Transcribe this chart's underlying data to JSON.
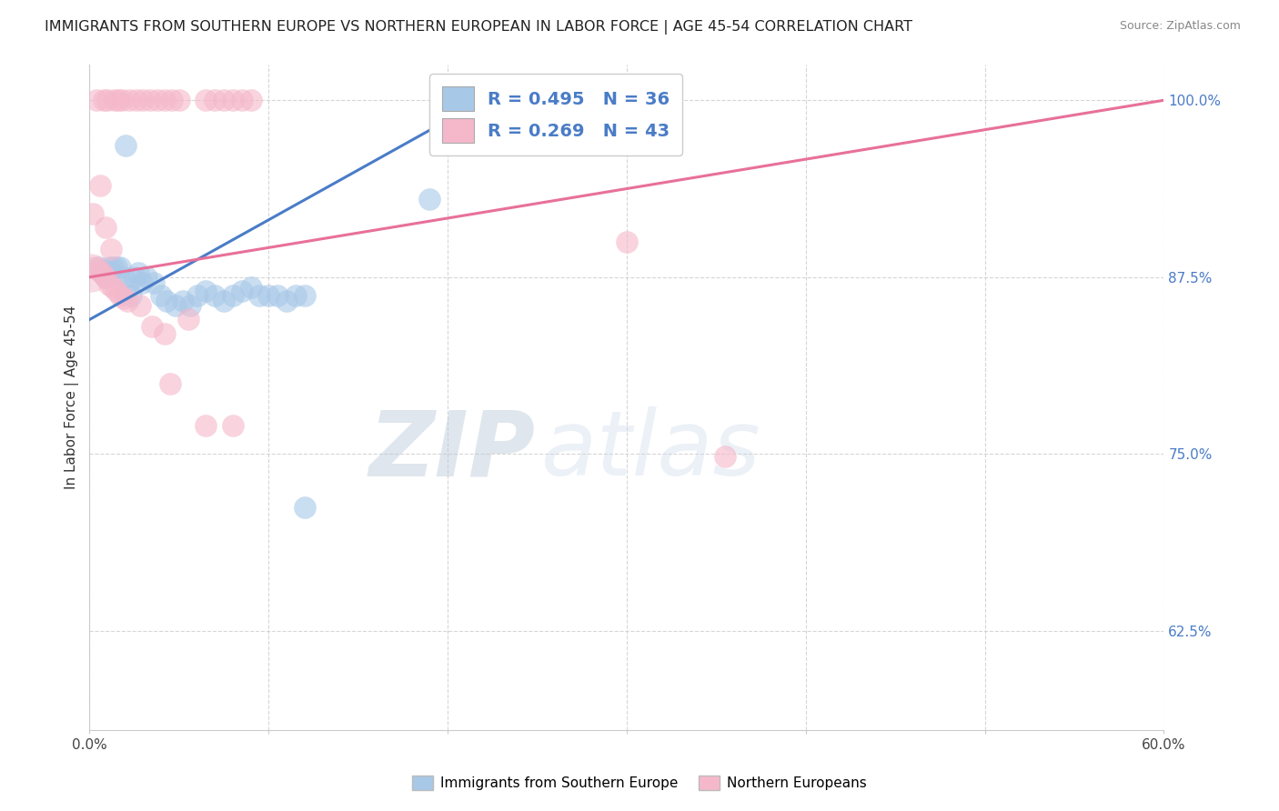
{
  "title": "IMMIGRANTS FROM SOUTHERN EUROPE VS NORTHERN EUROPEAN IN LABOR FORCE | AGE 45-54 CORRELATION CHART",
  "source": "Source: ZipAtlas.com",
  "ylabel": "In Labor Force | Age 45-54",
  "ytick_labels": [
    "100.0%",
    "87.5%",
    "75.0%",
    "62.5%"
  ],
  "ytick_values": [
    1.0,
    0.875,
    0.75,
    0.625
  ],
  "xlim": [
    0.0,
    0.6
  ],
  "ylim": [
    0.555,
    1.025
  ],
  "legend_blue_label": "R = 0.495   N = 36",
  "legend_pink_label": "R = 0.269   N = 43",
  "watermark_zip": "ZIP",
  "watermark_atlas": "atlas",
  "blue_color": "#a8c8e8",
  "pink_color": "#f5b8cb",
  "blue_line_color": "#4a7cc7",
  "pink_line_color": "#e8709a",
  "blue_scatter": [
    [
      0.005,
      0.882
    ],
    [
      0.007,
      0.878
    ],
    [
      0.009,
      0.875
    ],
    [
      0.011,
      0.882
    ],
    [
      0.013,
      0.882
    ],
    [
      0.015,
      0.882
    ],
    [
      0.017,
      0.882
    ],
    [
      0.019,
      0.875
    ],
    [
      0.021,
      0.868
    ],
    [
      0.023,
      0.862
    ],
    [
      0.025,
      0.875
    ],
    [
      0.027,
      0.878
    ],
    [
      0.029,
      0.871
    ],
    [
      0.032,
      0.875
    ],
    [
      0.036,
      0.871
    ],
    [
      0.04,
      0.862
    ],
    [
      0.043,
      0.858
    ],
    [
      0.048,
      0.855
    ],
    [
      0.052,
      0.858
    ],
    [
      0.056,
      0.855
    ],
    [
      0.06,
      0.862
    ],
    [
      0.065,
      0.865
    ],
    [
      0.07,
      0.862
    ],
    [
      0.075,
      0.858
    ],
    [
      0.08,
      0.862
    ],
    [
      0.085,
      0.865
    ],
    [
      0.09,
      0.868
    ],
    [
      0.095,
      0.862
    ],
    [
      0.1,
      0.862
    ],
    [
      0.105,
      0.862
    ],
    [
      0.11,
      0.858
    ],
    [
      0.115,
      0.862
    ],
    [
      0.12,
      0.862
    ],
    [
      0.02,
      0.968
    ],
    [
      0.12,
      0.712
    ],
    [
      0.19,
      0.93
    ]
  ],
  "pink_scatter": [
    [
      0.003,
      0.882
    ],
    [
      0.005,
      0.88
    ],
    [
      0.007,
      0.878
    ],
    [
      0.009,
      0.875
    ],
    [
      0.011,
      0.87
    ],
    [
      0.013,
      0.868
    ],
    [
      0.015,
      0.865
    ],
    [
      0.017,
      0.862
    ],
    [
      0.019,
      0.86
    ],
    [
      0.021,
      0.858
    ],
    [
      0.002,
      0.92
    ],
    [
      0.006,
      0.94
    ],
    [
      0.009,
      0.91
    ],
    [
      0.012,
      0.895
    ],
    [
      0.004,
      1.0
    ],
    [
      0.008,
      1.0
    ],
    [
      0.01,
      1.0
    ],
    [
      0.014,
      1.0
    ],
    [
      0.016,
      1.0
    ],
    [
      0.018,
      1.0
    ],
    [
      0.022,
      1.0
    ],
    [
      0.026,
      1.0
    ],
    [
      0.03,
      1.0
    ],
    [
      0.034,
      1.0
    ],
    [
      0.038,
      1.0
    ],
    [
      0.042,
      1.0
    ],
    [
      0.046,
      1.0
    ],
    [
      0.05,
      1.0
    ],
    [
      0.065,
      1.0
    ],
    [
      0.07,
      1.0
    ],
    [
      0.075,
      1.0
    ],
    [
      0.08,
      1.0
    ],
    [
      0.085,
      1.0
    ],
    [
      0.09,
      1.0
    ],
    [
      0.028,
      0.855
    ],
    [
      0.035,
      0.84
    ],
    [
      0.042,
      0.835
    ],
    [
      0.055,
      0.845
    ],
    [
      0.045,
      0.8
    ],
    [
      0.065,
      0.77
    ],
    [
      0.08,
      0.77
    ],
    [
      0.3,
      0.9
    ],
    [
      0.355,
      0.748
    ]
  ],
  "blue_line": {
    "x0": 0.0,
    "y0": 0.845,
    "x1": 0.22,
    "y1": 1.0
  },
  "pink_line": {
    "x0": 0.0,
    "y0": 0.875,
    "x1": 0.6,
    "y1": 1.0
  }
}
